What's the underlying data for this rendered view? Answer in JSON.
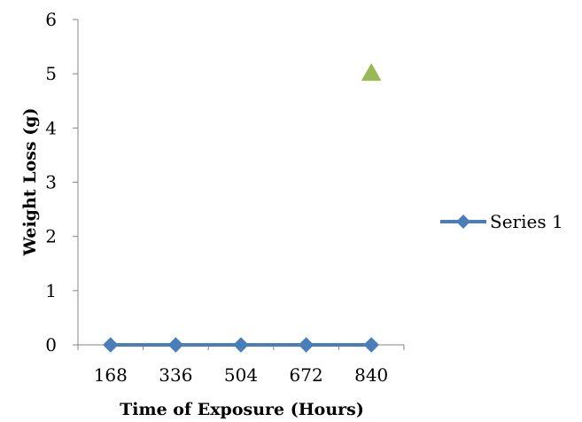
{
  "chart_data": {
    "type": "line",
    "xlabel": "Time of Exposure (Hours)",
    "ylabel": "Weight Loss (g)",
    "categories": [
      "168",
      "336",
      "504",
      "672",
      "840"
    ],
    "ylim": [
      0,
      6
    ],
    "yticks": [
      "0",
      "1",
      "2",
      "3",
      "4",
      "5",
      "6"
    ],
    "grid": false,
    "legend_position": "right",
    "series": [
      {
        "name": "Series 1",
        "values": [
          0,
          0,
          0,
          0,
          0
        ],
        "color": "#4a7ebb",
        "marker": "diamond"
      },
      {
        "values": [
          null,
          null,
          null,
          null,
          5
        ],
        "color": "#98b954",
        "marker": "triangle"
      }
    ]
  },
  "colors": {
    "axis": "#868686",
    "series_1": "#4a7ebb",
    "series_2": "#98b954"
  }
}
